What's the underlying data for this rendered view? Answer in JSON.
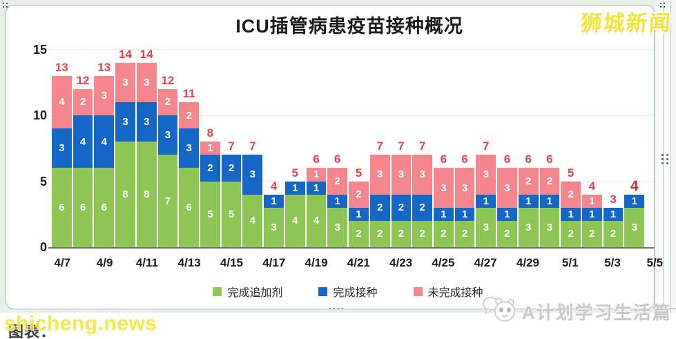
{
  "branding": {
    "top_right_logo": "狮城新闻",
    "bottom_left_watermark": "shicheng.news",
    "source_label": "图表：",
    "bottom_right_watermark": "A计划学习生活篇"
  },
  "chart_data": {
    "type": "bar",
    "stacked": true,
    "title": "ICU插管病患疫苗接种概况",
    "categories": [
      "4/7",
      "4/8",
      "4/9",
      "4/10",
      "4/11",
      "4/12",
      "4/13",
      "4/14",
      "4/15",
      "4/16",
      "4/17",
      "4/18",
      "4/19",
      "4/20",
      "4/21",
      "4/22",
      "4/23",
      "4/24",
      "4/25",
      "4/26",
      "4/27",
      "4/28",
      "4/29",
      "4/30",
      "5/1",
      "5/2",
      "5/3",
      "5/4"
    ],
    "x_tick_labels": [
      "4/7",
      "4/9",
      "4/11",
      "4/13",
      "4/15",
      "4/17",
      "4/19",
      "4/21",
      "4/23",
      "4/25",
      "4/27",
      "4/29",
      "5/1",
      "5/3",
      "5/5"
    ],
    "yticks": [
      0,
      5,
      10,
      15
    ],
    "ylim": [
      0,
      15
    ],
    "grid": false,
    "legend_position": "bottom",
    "series": [
      {
        "name": "完成追加剂",
        "color": "#8dc654",
        "values": [
          6,
          6,
          6,
          8,
          8,
          7,
          6,
          5,
          5,
          4,
          3,
          4,
          4,
          3,
          2,
          2,
          2,
          2,
          2,
          2,
          3,
          2,
          3,
          3,
          2,
          2,
          2,
          3
        ]
      },
      {
        "name": "完成接种",
        "color": "#1467c6",
        "values": [
          3,
          4,
          4,
          3,
          3,
          3,
          3,
          2,
          2,
          3,
          1,
          1,
          1,
          1,
          1,
          2,
          2,
          2,
          1,
          1,
          1,
          1,
          1,
          1,
          1,
          1,
          1,
          1
        ]
      },
      {
        "name": "未完成接种",
        "color": "#f5868d",
        "values": [
          4,
          2,
          3,
          3,
          3,
          2,
          2,
          1,
          0,
          0,
          0,
          0,
          1,
          2,
          2,
          3,
          3,
          3,
          3,
          3,
          3,
          3,
          2,
          2,
          2,
          1,
          0,
          0
        ]
      }
    ],
    "totals": [
      13,
      12,
      13,
      14,
      14,
      12,
      11,
      8,
      7,
      7,
      4,
      5,
      6,
      6,
      5,
      7,
      7,
      7,
      6,
      6,
      7,
      6,
      6,
      6,
      5,
      4,
      3,
      4
    ],
    "total_label_color": "#e2414e",
    "emphasized_last_total": true
  }
}
